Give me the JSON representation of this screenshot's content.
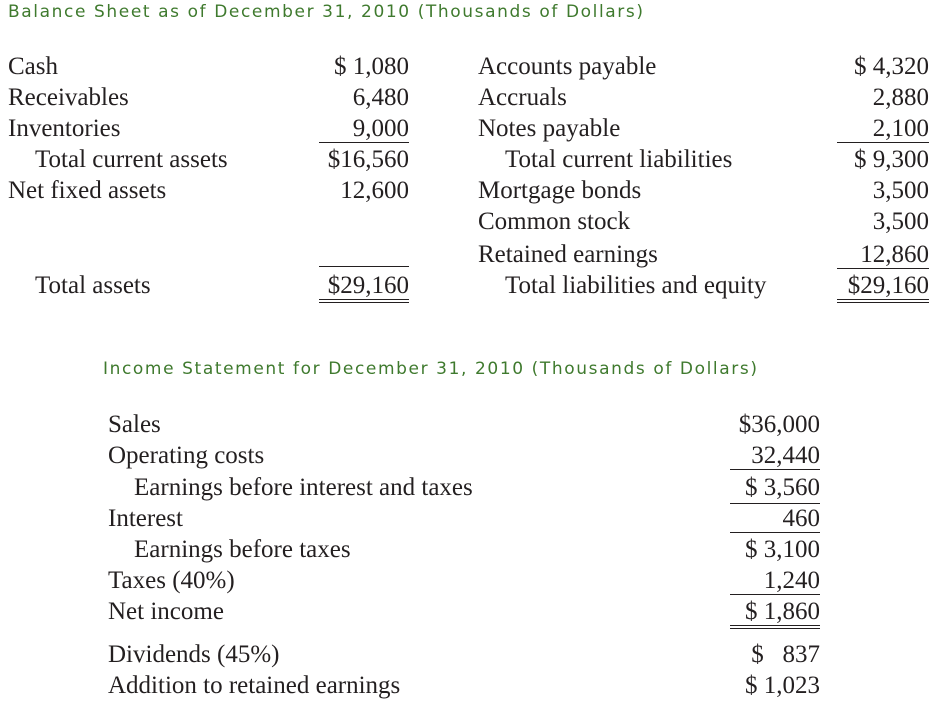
{
  "balance_sheet": {
    "title": "Balance Sheet as of December 31, 2010 (Thousands of Dollars)",
    "assets": {
      "cash": {
        "label": "Cash",
        "value": "$ 1,080"
      },
      "receivables": {
        "label": "Receivables",
        "value": "6,480"
      },
      "inventories": {
        "label": "Inventories",
        "value": "9,000"
      },
      "total_current_assets": {
        "label": "Total current assets",
        "value": "$16,560"
      },
      "net_fixed_assets": {
        "label": "Net fixed assets",
        "value": "12,600"
      },
      "total_assets": {
        "label": "Total assets",
        "value": "$29,160"
      }
    },
    "liabilities": {
      "accounts_payable": {
        "label": "Accounts payable",
        "value": "$ 4,320"
      },
      "accruals": {
        "label": "Accruals",
        "value": "2,880"
      },
      "notes_payable": {
        "label": "Notes payable",
        "value": "2,100"
      },
      "total_current_liabilities": {
        "label": "Total current liabilities",
        "value": "$ 9,300"
      },
      "mortgage_bonds": {
        "label": "Mortgage bonds",
        "value": "3,500"
      },
      "common_stock": {
        "label": "Common stock",
        "value": "3,500"
      },
      "retained_earnings": {
        "label": "Retained earnings",
        "value": "12,860"
      },
      "total_liabilities_equity": {
        "label": "Total liabilities and equity",
        "value": "$29,160"
      }
    }
  },
  "income_statement": {
    "title": "Income Statement for December 31, 2010 (Thousands of Dollars)",
    "sales": {
      "label": "Sales",
      "value": "$36,000"
    },
    "operating_costs": {
      "label": "Operating costs",
      "value": "32,440"
    },
    "ebit": {
      "label": "Earnings before interest and taxes",
      "value": "$ 3,560"
    },
    "interest": {
      "label": "Interest",
      "value": "460"
    },
    "ebt": {
      "label": "Earnings before taxes",
      "value": "$ 3,100"
    },
    "taxes": {
      "label": "Taxes (40%)",
      "value": "1,240"
    },
    "net_income": {
      "label": "Net income",
      "value": "$ 1,860"
    },
    "dividends": {
      "label": "Dividends (45%)",
      "value": "$   837"
    },
    "addition_retained": {
      "label": "Addition to retained earnings",
      "value": "$ 1,023"
    }
  },
  "colors": {
    "heading": "#3f7a2e",
    "text": "#231f20"
  }
}
